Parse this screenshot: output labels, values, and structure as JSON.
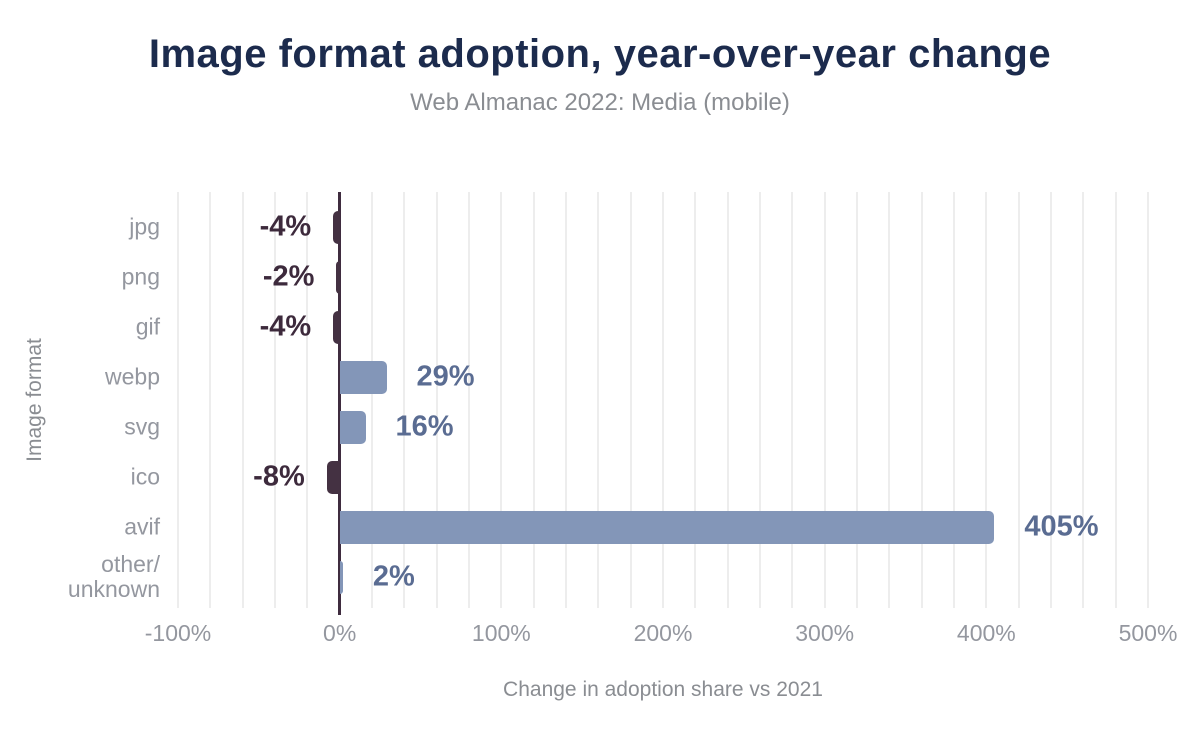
{
  "header": {
    "title": "Image format adoption, year-over-year change",
    "subtitle": "Web Almanac 2022: Media (mobile)"
  },
  "chart_data": {
    "type": "bar",
    "orientation": "horizontal",
    "title": "Image format adoption, year-over-year change",
    "subtitle": "Web Almanac 2022: Media (mobile)",
    "categories": [
      "jpg",
      "png",
      "gif",
      "webp",
      "svg",
      "ico",
      "avif",
      "other/\nunknown"
    ],
    "values": [
      -4,
      -2,
      -4,
      29,
      16,
      -8,
      405,
      2
    ],
    "value_labels": [
      "-4%",
      "-2%",
      "-4%",
      "29%",
      "16%",
      "-8%",
      "405%",
      "2%"
    ],
    "xlabel": "Change in adoption share vs 2021",
    "ylabel": "Image format",
    "xlim": [
      -100,
      500
    ],
    "xticks": [
      -100,
      0,
      100,
      200,
      300,
      400,
      500
    ],
    "xtick_labels": [
      "-100%",
      "0%",
      "100%",
      "200%",
      "300%",
      "400%",
      "500%"
    ],
    "grid_step": 20,
    "grid": "vertical",
    "legend": "none",
    "colors": {
      "title": "#1c2b4d",
      "subtitle": "#8a8d92",
      "axis_text": "#94979f",
      "axis_title": "#8a8d92",
      "gridline": "#ededed",
      "zero_line": "#3f2c3f",
      "bar_positive": "#8396b8",
      "bar_negative": "#443142",
      "label_positive": "#5a6c92",
      "label_negative": "#3d2a3c",
      "background": "#ffffff"
    }
  }
}
